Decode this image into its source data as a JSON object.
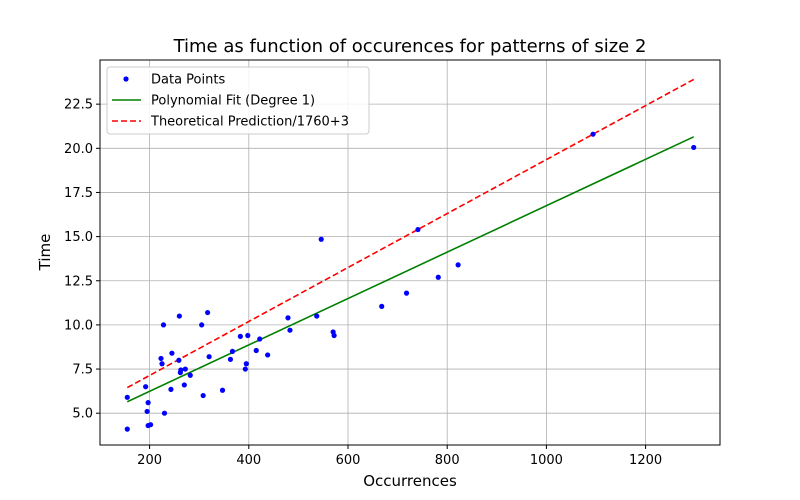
{
  "chart_data": {
    "type": "scatter",
    "title": "Time as function of occurences for patterns of size 2",
    "xlabel": "Occurrences",
    "ylabel": "Time",
    "xlim": [
      100,
      1350
    ],
    "ylim": [
      3.2,
      25
    ],
    "xticks": [
      200,
      400,
      600,
      800,
      1000,
      1200
    ],
    "yticks": [
      5.0,
      7.5,
      10.0,
      12.5,
      15.0,
      17.5,
      20.0,
      22.5
    ],
    "grid": true,
    "legend_position": "top-left",
    "series": [
      {
        "name": "Data Points",
        "kind": "scatter",
        "color": "#0000ff",
        "points": [
          [
            155,
            5.9
          ],
          [
            155,
            4.1
          ],
          [
            192,
            6.5
          ],
          [
            195,
            5.1
          ],
          [
            197,
            5.6
          ],
          [
            197,
            4.3
          ],
          [
            202,
            4.35
          ],
          [
            223,
            8.1
          ],
          [
            225,
            7.8
          ],
          [
            228,
            10.0
          ],
          [
            230,
            5.0
          ],
          [
            243,
            6.35
          ],
          [
            245,
            8.4
          ],
          [
            259,
            8.0
          ],
          [
            260,
            10.5
          ],
          [
            262,
            7.3
          ],
          [
            263,
            7.45
          ],
          [
            270,
            6.6
          ],
          [
            272,
            7.5
          ],
          [
            282,
            7.15
          ],
          [
            305,
            10.0
          ],
          [
            308,
            6.0
          ],
          [
            317,
            10.7
          ],
          [
            320,
            8.2
          ],
          [
            347,
            6.3
          ],
          [
            363,
            8.05
          ],
          [
            367,
            8.5
          ],
          [
            383,
            9.35
          ],
          [
            393,
            7.5
          ],
          [
            395,
            7.8
          ],
          [
            398,
            9.4
          ],
          [
            415,
            8.55
          ],
          [
            422,
            9.2
          ],
          [
            438,
            8.3
          ],
          [
            479,
            10.4
          ],
          [
            483,
            9.7
          ],
          [
            537,
            10.5
          ],
          [
            546,
            14.85
          ],
          [
            570,
            9.6
          ],
          [
            572,
            9.4
          ],
          [
            668,
            11.05
          ],
          [
            718,
            11.8
          ],
          [
            741,
            15.4
          ],
          [
            782,
            12.7
          ],
          [
            822,
            13.4
          ],
          [
            1094,
            20.8
          ],
          [
            1297,
            20.05
          ]
        ]
      },
      {
        "name": "Polynomial Fit (Degree 1)",
        "kind": "line",
        "color": "#008000",
        "dash": "solid",
        "points": [
          [
            155,
            5.65
          ],
          [
            1297,
            20.65
          ]
        ]
      },
      {
        "name": "Theoretical Prediction/1760+3",
        "kind": "line",
        "color": "#ff0000",
        "dash": "dashed",
        "points": [
          [
            155,
            6.45
          ],
          [
            1297,
            23.9
          ]
        ]
      }
    ]
  }
}
